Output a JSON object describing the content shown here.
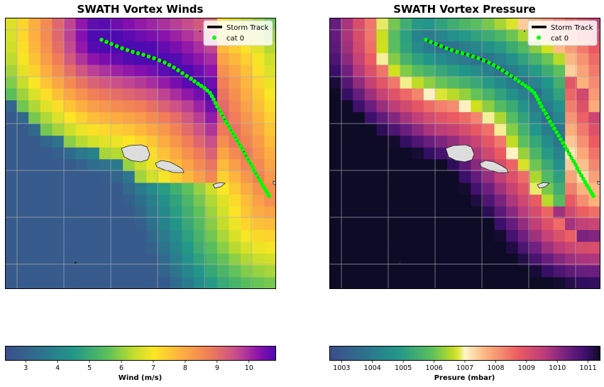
{
  "panels": [
    {
      "title": "SWATH Vortex Winds",
      "legend": {
        "track_label": "Storm Track",
        "points_label": "cat 0"
      },
      "colorbar": {
        "label": "Wind (m/s)",
        "ticks": [
          "3",
          "4",
          "5",
          "6",
          "7",
          "8",
          "9",
          "10"
        ],
        "range": [
          2.35,
          10.85
        ]
      }
    },
    {
      "title": "SWATH Vortex Pressure",
      "legend": {
        "track_label": "Storm Track",
        "points_label": "cat 0"
      },
      "colorbar": {
        "label": "Presure (mbar)",
        "ticks": [
          "1003",
          "1004",
          "1005",
          "1006",
          "1007",
          "1008",
          "1009",
          "1010",
          "1011"
        ],
        "range": [
          1002.6,
          1011.4
        ]
      }
    }
  ],
  "colors": {
    "track_points": "#00ff00",
    "track_line": "#000000",
    "land": "#dddddd",
    "grid": "#b0b0b0"
  }
}
